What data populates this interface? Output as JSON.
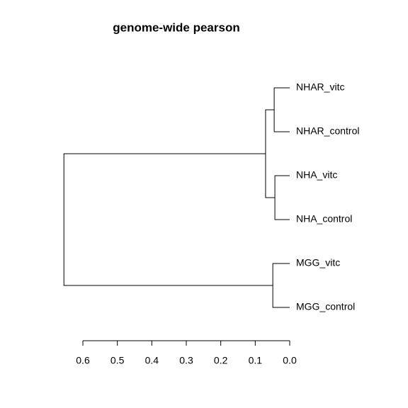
{
  "chart_data": {
    "type": "dendrogram",
    "title": "genome-wide pearson",
    "labels": [
      "NHAR_vitc",
      "NHAR_control",
      "NHA_vitc",
      "NHA_control",
      "MGG_vitc",
      "MGG_control"
    ],
    "merge": [
      [
        -1,
        -2
      ],
      [
        -3,
        -4
      ],
      [
        1,
        2
      ],
      [
        -5,
        -6
      ],
      [
        3,
        4
      ]
    ],
    "height": [
      0.045,
      0.043,
      0.07,
      0.049,
      0.655
    ],
    "color": "#000000",
    "xlim": [
      0.6,
      0
    ],
    "xticks": [
      0.6,
      0.5,
      0.4,
      0.3,
      0.2,
      0.1,
      {
        "value": 0,
        "label": "0.0"
      }
    ]
  }
}
